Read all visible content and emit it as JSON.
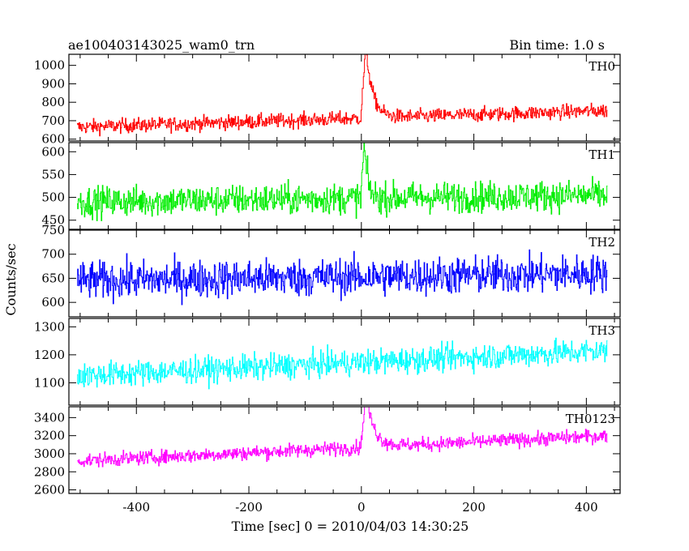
{
  "header": {
    "title": "ae100403143025_wam0_trn",
    "bin_time": "Bin time: 1.0 s"
  },
  "chart_data": {
    "type": "line",
    "xlabel": "Time [sec] 0 = 2010/04/03 14:30:25",
    "ylabel": "Counts/sec",
    "xlim": [
      -520,
      460
    ],
    "x_ticks": [
      -400,
      -200,
      0,
      200,
      400
    ],
    "x_start": -505,
    "x_end": 437,
    "bin_time_s": 1.0,
    "panels": [
      {
        "name": "TH0",
        "color": "#ff0000",
        "ylim": [
          590,
          1060
        ],
        "y_ticks": [
          600,
          700,
          800,
          900,
          1000
        ],
        "baseline_start": 665,
        "baseline_end": 755,
        "noise": 28,
        "burst_peak": 1055,
        "burst_time": 8,
        "burst_decay": 12
      },
      {
        "name": "TH1",
        "color": "#00ee00",
        "ylim": [
          430,
          620
        ],
        "y_ticks": [
          450,
          500,
          550,
          600
        ],
        "baseline_start": 490,
        "baseline_end": 505,
        "noise": 24,
        "burst_peak": 610,
        "burst_time": 5,
        "burst_decay": 6
      },
      {
        "name": "TH2",
        "color": "#0000ff",
        "ylim": [
          570,
          750
        ],
        "y_ticks": [
          600,
          650,
          700,
          750
        ],
        "baseline_start": 645,
        "baseline_end": 660,
        "noise": 28,
        "burst_peak": 0,
        "burst_time": 0,
        "burst_decay": 1
      },
      {
        "name": "TH3",
        "color": "#00ffff",
        "ylim": [
          1020,
          1330
        ],
        "y_ticks": [
          1100,
          1200,
          1300
        ],
        "baseline_start": 1125,
        "baseline_end": 1215,
        "noise": 33,
        "burst_peak": 0,
        "burst_time": 0,
        "burst_decay": 1
      },
      {
        "name": "TH0123",
        "color": "#ff00ff",
        "ylim": [
          2560,
          3520
        ],
        "y_ticks": [
          2600,
          2800,
          3000,
          3200,
          3400
        ],
        "baseline_start": 2920,
        "baseline_end": 3200,
        "noise": 55,
        "burst_peak": 3520,
        "burst_time": 8,
        "burst_decay": 14
      }
    ]
  }
}
